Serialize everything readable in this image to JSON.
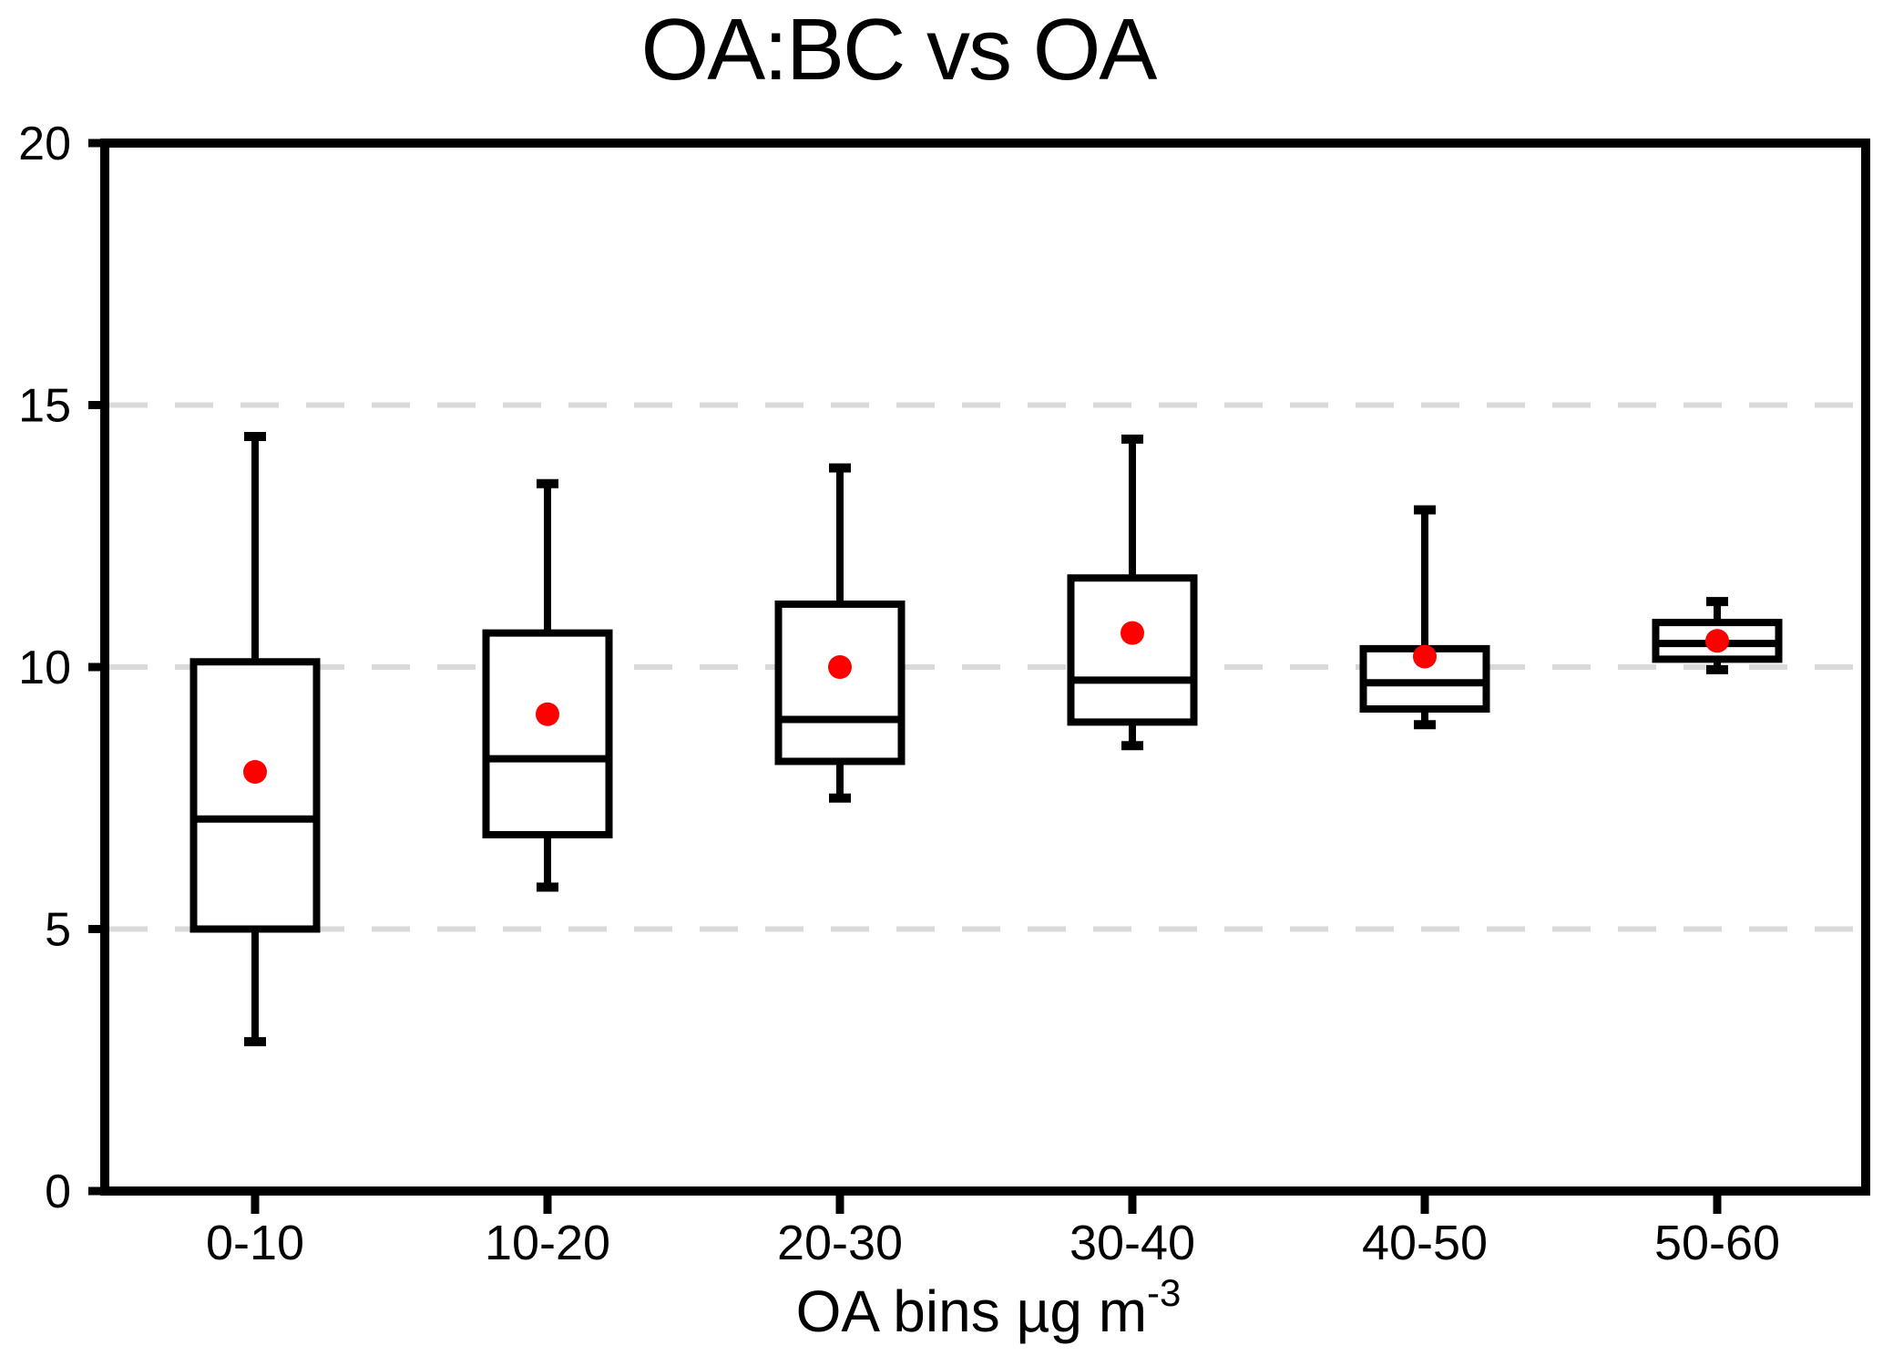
{
  "chart_data": {
    "type": "box",
    "title": "OA:BC vs OA",
    "x_axis": {
      "label_main": "OA bins µg m",
      "label_superscript": "-3",
      "categories": [
        "0-10",
        "10-20",
        "20-30",
        "30-40",
        "40-50",
        "50-60"
      ]
    },
    "y_axis": {
      "min": 0,
      "max": 20,
      "tick_interval": 5,
      "tick_labels": [
        "0",
        "5",
        "10",
        "15",
        "20"
      ],
      "gridlines_at": [
        5,
        10,
        15
      ],
      "grid_style": "dashed",
      "label": ""
    },
    "legend": "none",
    "boxes": [
      {
        "category": "0-10",
        "whisker_low": 2.85,
        "q1": 5.0,
        "median": 7.1,
        "q3": 10.1,
        "whisker_high": 14.4,
        "mean": 8.0
      },
      {
        "category": "10-20",
        "whisker_low": 5.8,
        "q1": 6.8,
        "median": 8.25,
        "q3": 10.65,
        "whisker_high": 13.5,
        "mean": 9.1
      },
      {
        "category": "20-30",
        "whisker_low": 7.5,
        "q1": 8.2,
        "median": 9.0,
        "q3": 11.2,
        "whisker_high": 13.8,
        "mean": 10.0
      },
      {
        "category": "30-40",
        "whisker_low": 8.5,
        "q1": 8.95,
        "median": 9.75,
        "q3": 11.7,
        "whisker_high": 14.35,
        "mean": 10.65
      },
      {
        "category": "40-50",
        "whisker_low": 8.9,
        "q1": 9.2,
        "median": 9.7,
        "q3": 10.35,
        "whisker_high": 13.0,
        "mean": 10.2
      },
      {
        "category": "50-60",
        "whisker_low": 9.95,
        "q1": 10.15,
        "median": 10.45,
        "q3": 10.85,
        "whisker_high": 11.25,
        "mean": 10.5
      }
    ],
    "colors": {
      "stroke": "#000000",
      "mean_dot": "#FF0000",
      "gridline": "#D9D9D9",
      "background": "#FFFFFF"
    }
  }
}
